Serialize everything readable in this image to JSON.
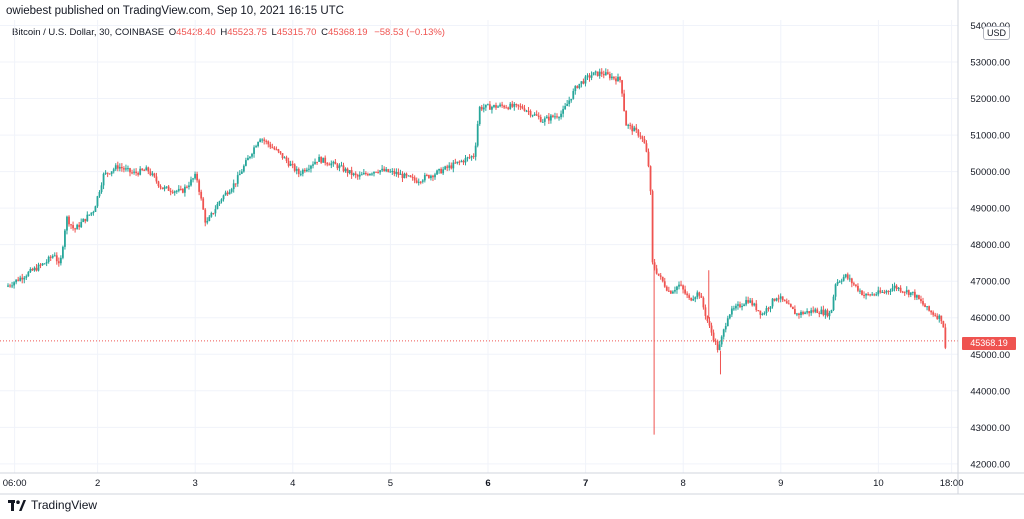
{
  "header": {
    "text": "owiebest published on TradingView.com, Sep 10, 2021 16:15 UTC"
  },
  "legend": {
    "symbol": "Bitcoin / U.S. Dollar, 30, COINBASE",
    "o_label": "O",
    "o_value": "45428.40",
    "h_label": "H",
    "h_value": "45523.75",
    "l_label": "L",
    "l_value": "45315.70",
    "c_label": "C",
    "c_value": "45368.19",
    "change": "−58.53 (−0.13%)"
  },
  "price_tag": "45368.19",
  "currency_badge": "USD",
  "footer_logo": "TradingView",
  "colors": {
    "up": "#26a69a",
    "down": "#ef5350",
    "grid": "#f0f3fa",
    "axis": "#131722"
  },
  "chart_data": {
    "type": "candlestick",
    "ylim": [
      41750,
      54150
    ],
    "y_ticks": [
      "42000.00",
      "43000.00",
      "44000.00",
      "45000.00",
      "46000.00",
      "47000.00",
      "48000.00",
      "49000.00",
      "50000.00",
      "51000.00",
      "52000.00",
      "53000.00",
      "54000.00"
    ],
    "x_ticks": [
      {
        "label": "06:00",
        "t": 0.15,
        "bold": false
      },
      {
        "label": "2",
        "t": 1.0,
        "bold": false
      },
      {
        "label": "3",
        "t": 2.0,
        "bold": false
      },
      {
        "label": "4",
        "t": 3.0,
        "bold": false
      },
      {
        "label": "5",
        "t": 4.0,
        "bold": false
      },
      {
        "label": "6",
        "t": 5.0,
        "bold": true
      },
      {
        "label": "7",
        "t": 6.0,
        "bold": true
      },
      {
        "label": "8",
        "t": 7.0,
        "bold": false
      },
      {
        "label": "9",
        "t": 8.0,
        "bold": false
      },
      {
        "label": "10",
        "t": 9.0,
        "bold": false
      },
      {
        "label": "18:00",
        "t": 9.75,
        "bold": false
      }
    ],
    "last_price": 45368.19,
    "path": [
      [
        0,
        46850
      ],
      [
        0.4,
        47500
      ],
      [
        0.5,
        47750
      ],
      [
        0.55,
        47350
      ],
      [
        0.62,
        48750
      ],
      [
        0.7,
        48400
      ],
      [
        0.9,
        48950
      ],
      [
        1.0,
        49900
      ],
      [
        1.15,
        50150
      ],
      [
        1.3,
        49950
      ],
      [
        1.45,
        50050
      ],
      [
        1.6,
        49550
      ],
      [
        1.8,
        49450
      ],
      [
        1.95,
        49900
      ],
      [
        2.05,
        48550
      ],
      [
        2.2,
        49250
      ],
      [
        2.35,
        49700
      ],
      [
        2.5,
        50450
      ],
      [
        2.6,
        50950
      ],
      [
        2.8,
        50500
      ],
      [
        3.0,
        49950
      ],
      [
        3.2,
        50350
      ],
      [
        3.4,
        50150
      ],
      [
        3.6,
        49850
      ],
      [
        3.8,
        50050
      ],
      [
        4.0,
        49950
      ],
      [
        4.2,
        49750
      ],
      [
        4.4,
        49950
      ],
      [
        4.6,
        50200
      ],
      [
        4.8,
        50450
      ],
      [
        4.85,
        51750
      ],
      [
        5.1,
        51800
      ],
      [
        5.3,
        51750
      ],
      [
        5.5,
        51400
      ],
      [
        5.7,
        51600
      ],
      [
        5.85,
        52350
      ],
      [
        6.0,
        52650
      ],
      [
        6.1,
        52700
      ],
      [
        6.3,
        52500
      ],
      [
        6.35,
        51300
      ],
      [
        6.5,
        51000
      ],
      [
        6.55,
        50700
      ],
      [
        6.6,
        49900
      ],
      [
        6.62,
        47500
      ],
      [
        6.7,
        47100
      ],
      [
        6.8,
        46700
      ],
      [
        6.9,
        46900
      ],
      [
        7.0,
        46500
      ],
      [
        7.1,
        46700
      ],
      [
        7.2,
        45800
      ],
      [
        7.3,
        45100
      ],
      [
        7.4,
        46100
      ],
      [
        7.6,
        46500
      ],
      [
        7.75,
        46100
      ],
      [
        7.9,
        46600
      ],
      [
        8.1,
        46100
      ],
      [
        8.3,
        46200
      ],
      [
        8.45,
        46100
      ],
      [
        8.5,
        46950
      ],
      [
        8.6,
        47150
      ],
      [
        8.8,
        46600
      ],
      [
        9.0,
        46700
      ],
      [
        9.1,
        46850
      ],
      [
        9.3,
        46650
      ],
      [
        9.45,
        46200
      ],
      [
        9.6,
        45950
      ],
      [
        9.62,
        45100
      ],
      [
        9.66,
        45368
      ]
    ],
    "spikes": [
      {
        "t": 6.62,
        "low": 42800
      },
      {
        "t": 7.3,
        "low": 44450
      },
      {
        "t": 7.18,
        "high": 47300
      }
    ]
  }
}
